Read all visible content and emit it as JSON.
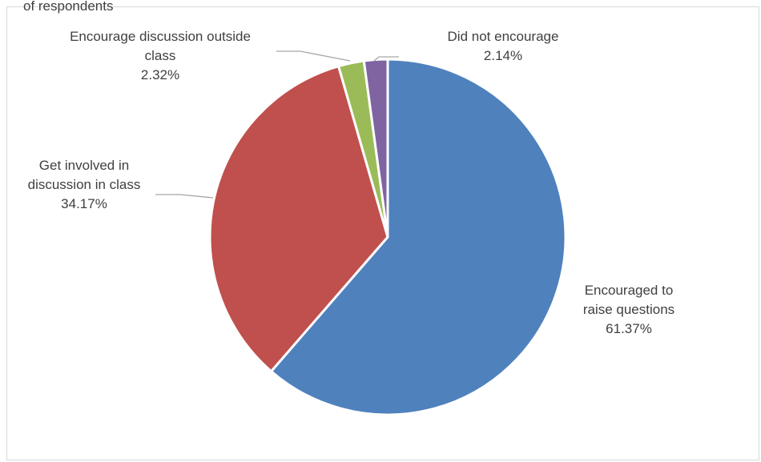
{
  "header_partial_text": "of respondents",
  "chart_data": {
    "type": "pie",
    "slices": [
      {
        "label_lines": [
          "Encouraged to",
          "raise questions"
        ],
        "value_label": "61.37%",
        "value": 61.37,
        "color": "#4f81bd"
      },
      {
        "label_lines": [
          "Get involved in",
          "discussion in class"
        ],
        "value_label": "34.17%",
        "value": 34.17,
        "color": "#c0504d"
      },
      {
        "label_lines": [
          "Encourage discussion outside",
          "class"
        ],
        "value_label": "2.32%",
        "value": 2.32,
        "color": "#9bbb59"
      },
      {
        "label_lines": [
          "Did not encourage"
        ],
        "value_label": "2.14%",
        "value": 2.14,
        "color": "#8064a2"
      }
    ],
    "start": "12 o'clock",
    "direction": "clockwise",
    "legend": "none",
    "leader_line_color": "#a6a6a6"
  }
}
